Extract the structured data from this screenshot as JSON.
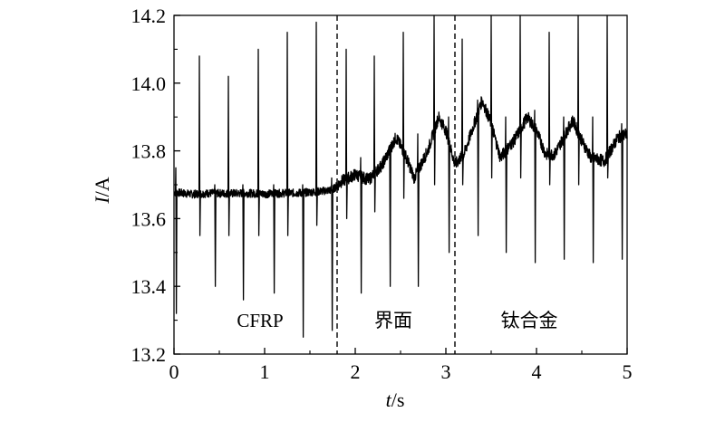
{
  "chart_data": {
    "type": "line",
    "title": "",
    "xlabel": "t/s",
    "xlabel_parts": {
      "var": "t",
      "unit": "/s"
    },
    "ylabel": "I/A",
    "ylabel_parts": {
      "var": "I",
      "unit": "/A"
    },
    "xlim": [
      0,
      5
    ],
    "ylim": [
      13.2,
      14.2
    ],
    "x_ticks": [
      0,
      1,
      2,
      3,
      4,
      5
    ],
    "x_tick_labels": [
      "0",
      "1",
      "2",
      "3",
      "4",
      "5"
    ],
    "y_ticks": [
      13.2,
      13.4,
      13.6,
      13.8,
      14.0,
      14.2
    ],
    "y_tick_labels": [
      "13.2",
      "13.4",
      "13.6",
      "13.8",
      "14.0",
      "14.2"
    ],
    "grid": false,
    "legend": "none",
    "line_color": "#000000",
    "boundaries": [
      1.8,
      3.1
    ],
    "regions": [
      {
        "label": "CFRP",
        "x": 0.95,
        "y": 13.28
      },
      {
        "label": "界面",
        "x": 2.42,
        "y": 13.28
      },
      {
        "label": "钛合金",
        "x": 3.92,
        "y": 13.28
      }
    ],
    "baseline": [
      [
        0.0,
        13.678
      ],
      [
        0.2,
        13.672
      ],
      [
        0.4,
        13.675
      ],
      [
        0.6,
        13.674
      ],
      [
        0.8,
        13.675
      ],
      [
        1.0,
        13.673
      ],
      [
        1.2,
        13.675
      ],
      [
        1.4,
        13.676
      ],
      [
        1.6,
        13.68
      ],
      [
        1.75,
        13.685
      ],
      [
        1.85,
        13.71
      ],
      [
        2.0,
        13.73
      ],
      [
        2.15,
        13.715
      ],
      [
        2.3,
        13.76
      ],
      [
        2.45,
        13.84
      ],
      [
        2.55,
        13.79
      ],
      [
        2.65,
        13.72
      ],
      [
        2.8,
        13.8
      ],
      [
        2.92,
        13.9
      ],
      [
        3.0,
        13.86
      ],
      [
        3.1,
        13.76
      ],
      [
        3.2,
        13.79
      ],
      [
        3.3,
        13.87
      ],
      [
        3.4,
        13.95
      ],
      [
        3.5,
        13.88
      ],
      [
        3.6,
        13.78
      ],
      [
        3.75,
        13.83
      ],
      [
        3.9,
        13.9
      ],
      [
        4.0,
        13.86
      ],
      [
        4.1,
        13.79
      ],
      [
        4.2,
        13.79
      ],
      [
        4.3,
        13.84
      ],
      [
        4.4,
        13.89
      ],
      [
        4.5,
        13.83
      ],
      [
        4.6,
        13.78
      ],
      [
        4.75,
        13.77
      ],
      [
        4.9,
        13.84
      ],
      [
        5.0,
        13.85
      ]
    ],
    "spikes": [
      {
        "x": 0.02,
        "high": 13.75,
        "low": 13.32
      },
      {
        "x": 0.28,
        "high": 14.08,
        "low": 13.55
      },
      {
        "x": 0.45,
        "high": 13.7,
        "low": 13.4
      },
      {
        "x": 0.6,
        "high": 14.02,
        "low": 13.55
      },
      {
        "x": 0.76,
        "high": 13.7,
        "low": 13.36
      },
      {
        "x": 0.93,
        "high": 14.1,
        "low": 13.55
      },
      {
        "x": 1.1,
        "high": 13.7,
        "low": 13.38
      },
      {
        "x": 1.25,
        "high": 14.15,
        "low": 13.55
      },
      {
        "x": 1.42,
        "high": 13.7,
        "low": 13.25
      },
      {
        "x": 1.57,
        "high": 14.18,
        "low": 13.58
      },
      {
        "x": 1.74,
        "high": 13.72,
        "low": 13.27
      },
      {
        "x": 1.9,
        "high": 14.1,
        "low": 13.6
      },
      {
        "x": 2.06,
        "high": 13.78,
        "low": 13.38
      },
      {
        "x": 2.21,
        "high": 14.08,
        "low": 13.62
      },
      {
        "x": 2.38,
        "high": 13.8,
        "low": 13.4
      },
      {
        "x": 2.53,
        "high": 14.15,
        "low": 13.66
      },
      {
        "x": 2.69,
        "high": 13.85,
        "low": 13.4
      },
      {
        "x": 2.87,
        "high": 14.2,
        "low": 13.7
      },
      {
        "x": 3.03,
        "high": 13.9,
        "low": 13.5
      },
      {
        "x": 3.18,
        "high": 14.13,
        "low": 13.7
      },
      {
        "x": 3.35,
        "high": 13.95,
        "low": 13.55
      },
      {
        "x": 3.5,
        "high": 14.2,
        "low": 13.72
      },
      {
        "x": 3.66,
        "high": 13.9,
        "low": 13.5
      },
      {
        "x": 3.82,
        "high": 14.2,
        "low": 13.72
      },
      {
        "x": 3.98,
        "high": 13.92,
        "low": 13.47
      },
      {
        "x": 4.14,
        "high": 14.15,
        "low": 13.7
      },
      {
        "x": 4.3,
        "high": 13.9,
        "low": 13.48
      },
      {
        "x": 4.46,
        "high": 14.2,
        "low": 13.7
      },
      {
        "x": 4.62,
        "high": 13.9,
        "low": 13.47
      },
      {
        "x": 4.78,
        "high": 14.2,
        "low": 13.72
      },
      {
        "x": 4.94,
        "high": 13.88,
        "low": 13.48
      }
    ]
  }
}
